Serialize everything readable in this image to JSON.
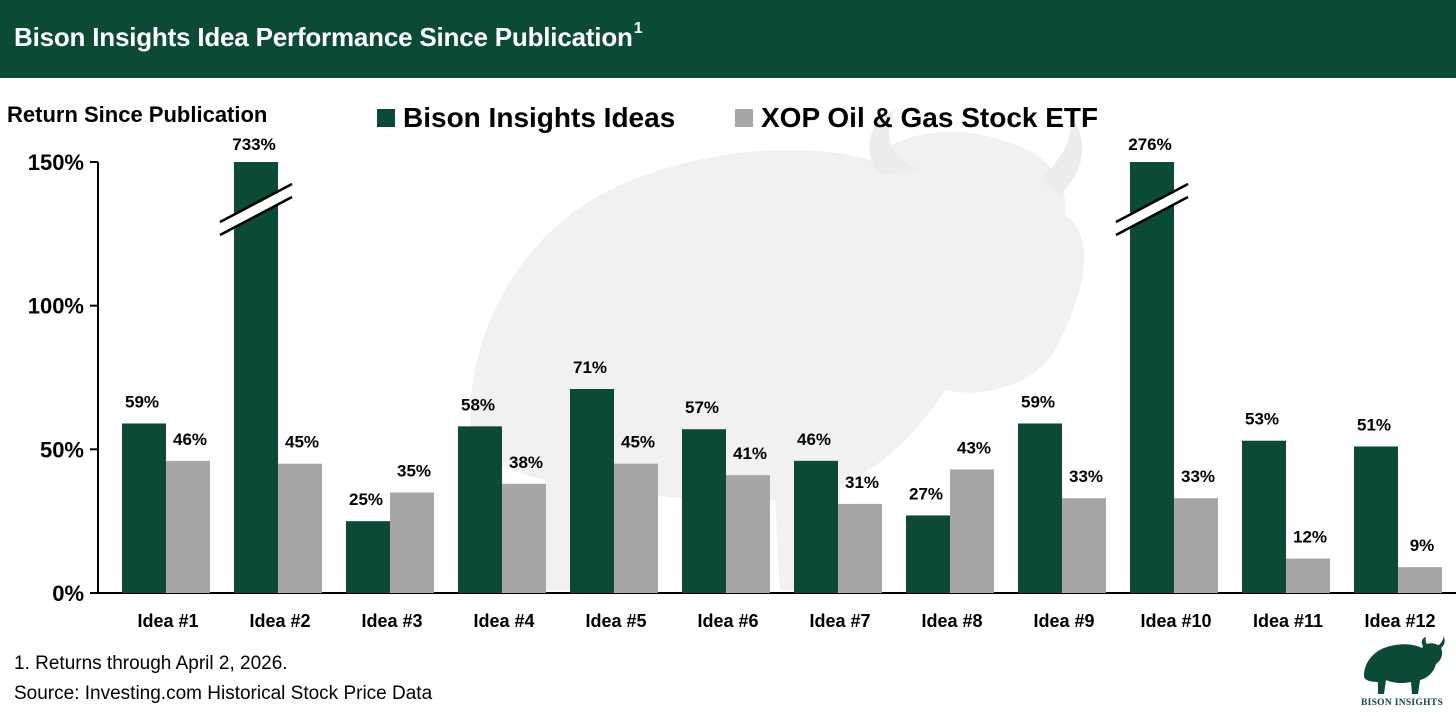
{
  "header": {
    "title": "Bison Insights Idea Performance Since Publication",
    "title_superscript": "1"
  },
  "colors": {
    "header_bg": "#0b4a37",
    "bison_series": "#0b4a37",
    "xop_series": "#a6a6a6"
  },
  "chart_data": {
    "type": "bar",
    "title": "",
    "ylabel": "Return Since Publication",
    "xlabel": "",
    "ylim": [
      0,
      150
    ],
    "yticks": [
      "0%",
      "50%",
      "100%",
      "150%"
    ],
    "ytick_values": [
      0,
      50,
      100,
      150
    ],
    "grid": false,
    "legend_position": "top",
    "categories": [
      "Idea #1",
      "Idea #2",
      "Idea #3",
      "Idea #4",
      "Idea #5",
      "Idea #6",
      "Idea #7",
      "Idea #8",
      "Idea #9",
      "Idea #10",
      "Idea #11",
      "Idea #12"
    ],
    "series": [
      {
        "name": "Bison Insights Ideas",
        "values": [
          59,
          733,
          25,
          58,
          71,
          57,
          46,
          27,
          59,
          276,
          53,
          51
        ],
        "labels": [
          "59%",
          "733%",
          "25%",
          "58%",
          "71%",
          "57%",
          "46%",
          "27%",
          "59%",
          "276%",
          "53%",
          "51%"
        ],
        "axis_breaks": [
          1,
          9
        ]
      },
      {
        "name": "XOP Oil & Gas Stock ETF",
        "values": [
          46,
          45,
          35,
          38,
          45,
          41,
          31,
          43,
          33,
          33,
          12,
          9
        ],
        "labels": [
          "46%",
          "45%",
          "35%",
          "38%",
          "45%",
          "41%",
          "31%",
          "43%",
          "33%",
          "33%",
          "12%",
          "9%"
        ]
      }
    ]
  },
  "footnotes": {
    "note": "1. Returns through April 2, 2026.",
    "source": "Source: Investing.com Historical Stock Price Data"
  },
  "logo": {
    "text": "BISON INSIGHTS",
    "icon": "bison-icon"
  }
}
